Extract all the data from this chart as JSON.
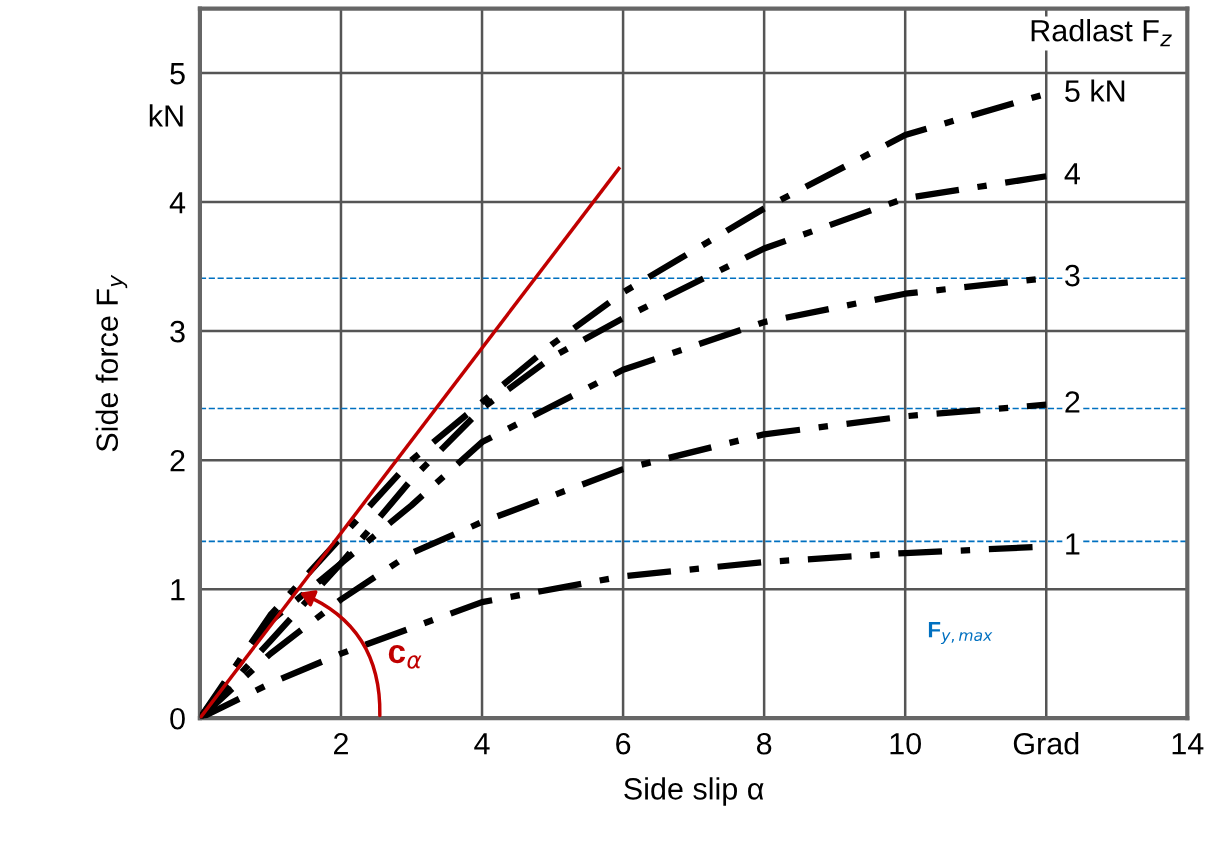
{
  "chart_data": {
    "type": "line",
    "xlabel": "Side slip α",
    "ylabel": "Side force F$_{y}$",
    "legend_title": "Radlast F$_{z}$",
    "xlim": [
      0,
      14
    ],
    "ylim": [
      0,
      5.5
    ],
    "xticks": [
      2,
      4,
      6,
      8,
      10,
      {
        "value": 12,
        "label": "Grad"
      },
      14
    ],
    "yticks": [
      0,
      1,
      2,
      3,
      4,
      5
    ],
    "grid": true,
    "legend": false,
    "marker": "none",
    "series": [
      {
        "name": "5 kN",
        "color": "#000000",
        "line_style": "dashdot",
        "x": [
          0,
          1,
          2,
          3,
          4,
          5,
          6,
          8,
          10,
          12
        ],
        "values": [
          0,
          0.8,
          1.4,
          2.0,
          2.45,
          2.9,
          3.3,
          3.95,
          4.52,
          4.84
        ]
      },
      {
        "name": "4",
        "color": "#000000",
        "line_style": "dashdot",
        "x": [
          0,
          1,
          2,
          3,
          4,
          5,
          6,
          8,
          10,
          12
        ],
        "values": [
          0,
          0.75,
          1.2,
          1.85,
          2.4,
          2.8,
          3.1,
          3.64,
          4.03,
          4.2
        ]
      },
      {
        "name": "3",
        "color": "#000000",
        "line_style": "dashdot",
        "x": [
          0,
          1,
          2,
          3,
          4,
          6,
          8,
          10,
          12
        ],
        "values": [
          0,
          0.6,
          1.2,
          1.65,
          2.14,
          2.7,
          3.07,
          3.29,
          3.41
        ]
      },
      {
        "name": "2",
        "color": "#000000",
        "line_style": "dashdot",
        "x": [
          0,
          1,
          2,
          3,
          4,
          6,
          8,
          10,
          12
        ],
        "values": [
          0,
          0.5,
          0.92,
          1.28,
          1.52,
          1.93,
          2.2,
          2.34,
          2.43
        ]
      },
      {
        "name": "1",
        "color": "#000000",
        "line_style": "dashdot",
        "x": [
          0,
          1,
          2,
          4,
          6,
          8,
          10,
          12
        ],
        "values": [
          0,
          0.27,
          0.5,
          0.9,
          1.1,
          1.21,
          1.28,
          1.33
        ]
      },
      {
        "color": "#c00000",
        "line_style": "solid",
        "x": [
          0,
          5.94
        ],
        "values": [
          0,
          4.26
        ]
      }
    ],
    "ref_lines": [
      {
        "axis": "y",
        "value": 1.37,
        "color": "#0070c0",
        "line_style": "dashed"
      },
      {
        "axis": "y",
        "value": 2.4,
        "color": "#0070c0",
        "line_style": "dashed"
      },
      {
        "axis": "y",
        "value": 3.41,
        "color": "#0070c0",
        "line_style": "dashed"
      }
    ],
    "annotations": [
      "kN",
      "c$_{α}$",
      "F$_{y,max}$"
    ]
  }
}
